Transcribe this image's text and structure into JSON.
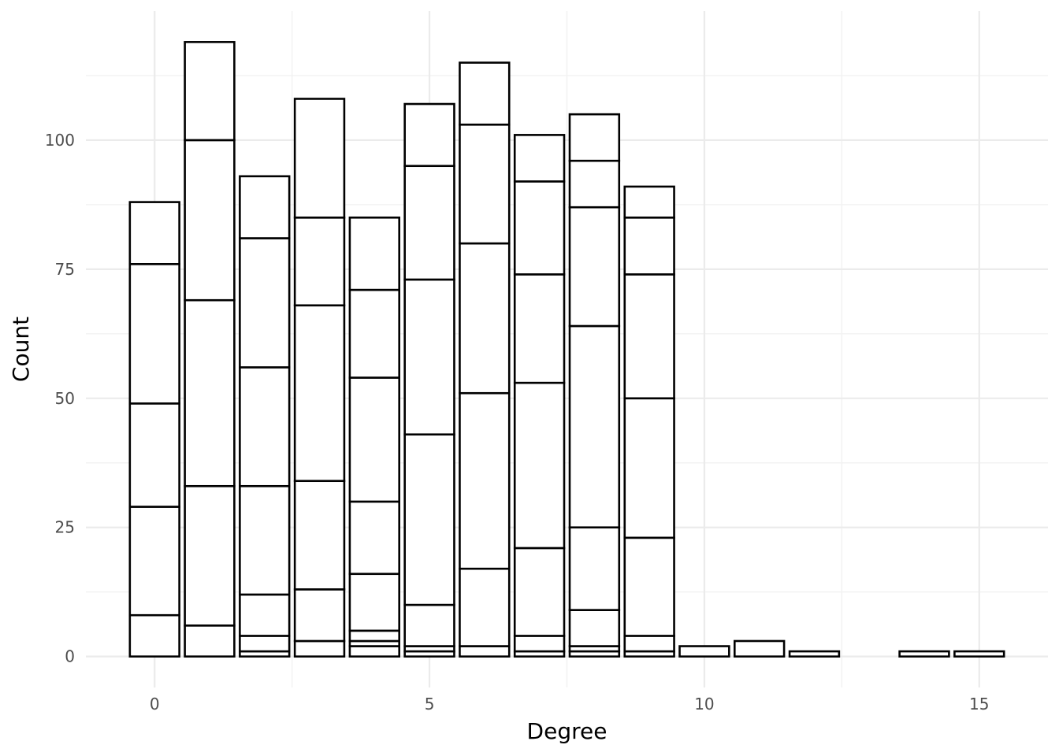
{
  "chart_data": {
    "type": "bar",
    "stacked": true,
    "xlabel": "Degree",
    "ylabel": "Count",
    "x_ticks": [
      0,
      5,
      10,
      15
    ],
    "y_ticks": [
      0,
      25,
      50,
      75,
      100
    ],
    "xlim": [
      -1.25,
      16.25
    ],
    "ylim": [
      -6,
      125
    ],
    "grid": true,
    "legend": "none",
    "colors": {
      "bar_fill": "#ffffff",
      "bar_stroke": "#000000",
      "grid": "#ebebeb"
    },
    "bars": [
      {
        "x": 0,
        "segments": [
          0,
          8,
          29,
          49,
          76,
          88
        ]
      },
      {
        "x": 1,
        "segments": [
          0,
          6,
          33,
          69,
          100,
          119
        ]
      },
      {
        "x": 2,
        "segments": [
          0,
          1,
          4,
          12,
          33,
          56,
          81,
          93
        ]
      },
      {
        "x": 3,
        "segments": [
          0,
          3,
          13,
          34,
          68,
          85,
          108
        ]
      },
      {
        "x": 4,
        "segments": [
          0,
          2,
          3,
          5,
          16,
          30,
          54,
          71,
          85
        ]
      },
      {
        "x": 5,
        "segments": [
          0,
          1,
          2,
          10,
          43,
          73,
          95,
          107
        ]
      },
      {
        "x": 6,
        "segments": [
          0,
          2,
          17,
          51,
          80,
          103,
          115
        ]
      },
      {
        "x": 7,
        "segments": [
          0,
          1,
          4,
          21,
          53,
          74,
          92,
          101
        ]
      },
      {
        "x": 8,
        "segments": [
          0,
          1,
          2,
          9,
          25,
          64,
          87,
          96,
          105
        ]
      },
      {
        "x": 9,
        "segments": [
          0,
          1,
          4,
          23,
          50,
          74,
          85,
          91
        ]
      },
      {
        "x": 10,
        "segments": [
          0,
          2
        ]
      },
      {
        "x": 11,
        "segments": [
          0,
          3
        ]
      },
      {
        "x": 12,
        "segments": [
          0,
          1
        ]
      },
      {
        "x": 14,
        "segments": [
          0,
          1
        ]
      },
      {
        "x": 15,
        "segments": [
          0,
          1
        ]
      }
    ]
  }
}
